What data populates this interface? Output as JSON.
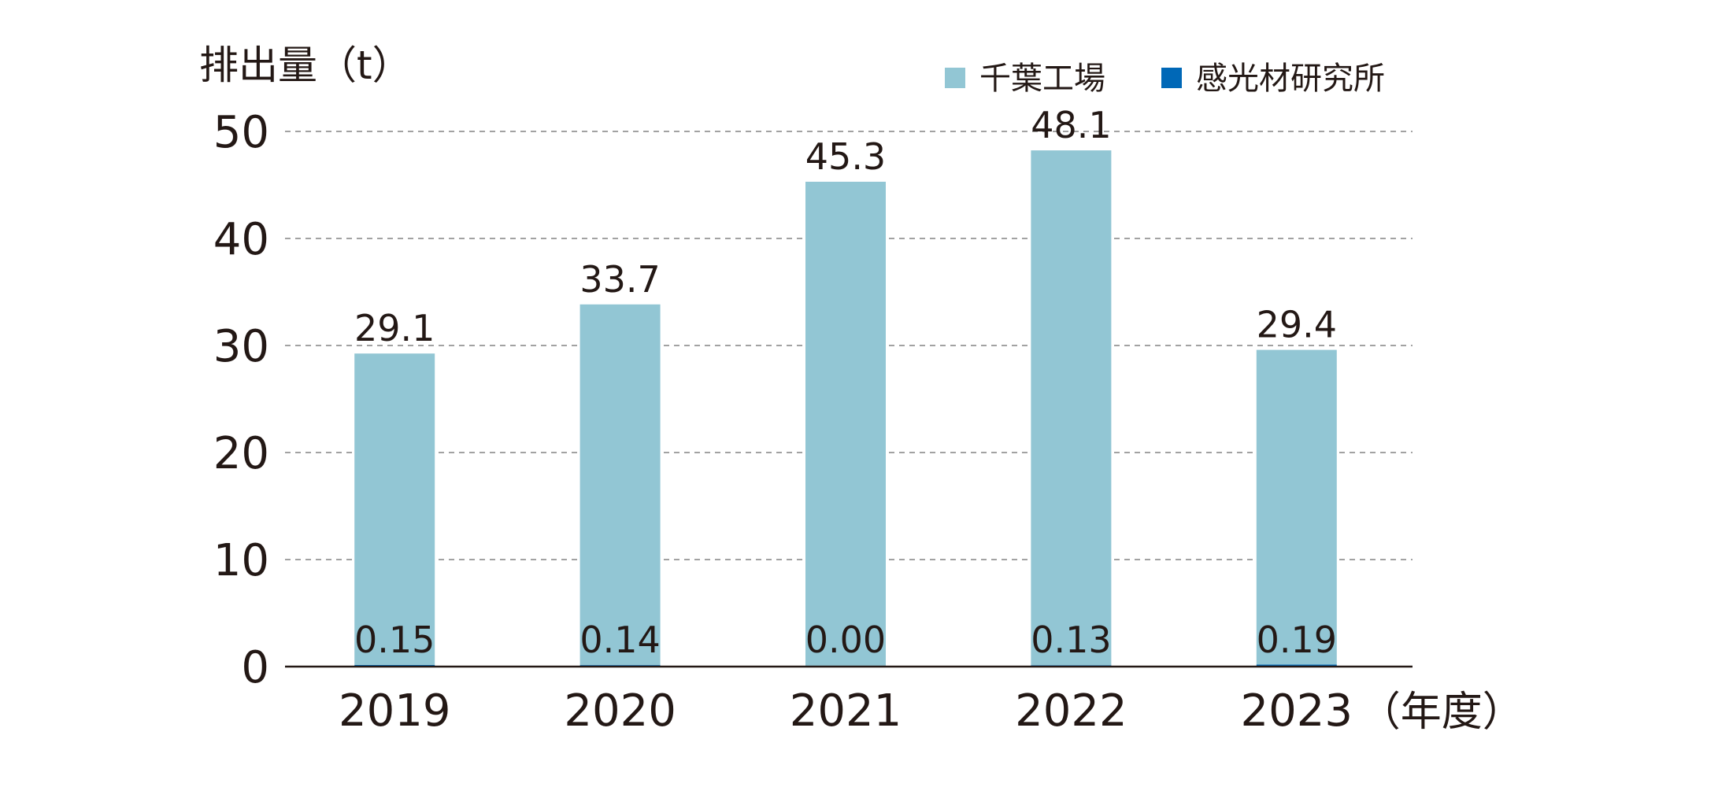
{
  "chart_data": {
    "type": "bar",
    "stacked": true,
    "ylabel": "排出量（t）",
    "xlabel": "（年度）",
    "categories": [
      "2019",
      "2020",
      "2021",
      "2022",
      "2023"
    ],
    "ylim": [
      0,
      50
    ],
    "yticks": [
      "0",
      "10",
      "20",
      "30",
      "40",
      "50"
    ],
    "grid": true,
    "legend_position": "top-right",
    "series": [
      {
        "name": "感光材研究所",
        "color": "#0068b7",
        "values": [
          0.15,
          0.14,
          0.0,
          0.13,
          0.19
        ],
        "labels": [
          "0.15",
          "0.14",
          "0.00",
          "0.13",
          "0.19"
        ]
      },
      {
        "name": "千葉工場",
        "color": "#92c6d4",
        "values": [
          29.1,
          33.7,
          45.3,
          48.1,
          29.4
        ],
        "labels": [
          "29.1",
          "33.7",
          "45.3",
          "48.1",
          "29.4"
        ]
      }
    ]
  }
}
